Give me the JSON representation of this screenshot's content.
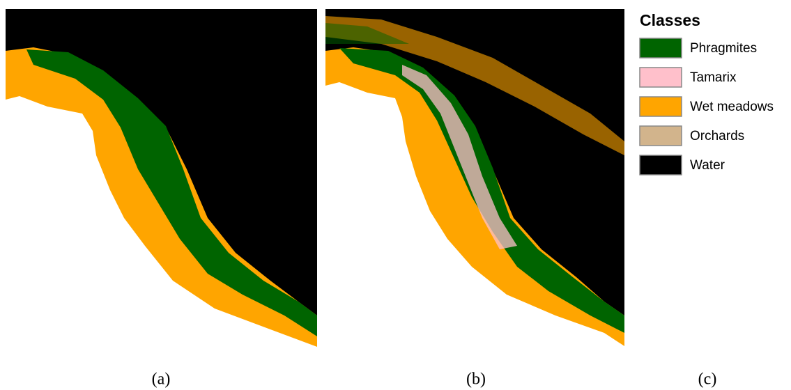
{
  "legend": {
    "title": "Classes",
    "items": [
      {
        "name": "Phragmites",
        "color": "#006400"
      },
      {
        "name": "Tamarix",
        "color": "#ffc0cb"
      },
      {
        "name": "Wet meadows",
        "color": "#ffa500"
      },
      {
        "name": "Orchards",
        "color": "#d2b48c"
      },
      {
        "name": "Water",
        "color": "#000000"
      }
    ]
  },
  "captions": [
    "(a)",
    "(b)",
    "(c)"
  ]
}
